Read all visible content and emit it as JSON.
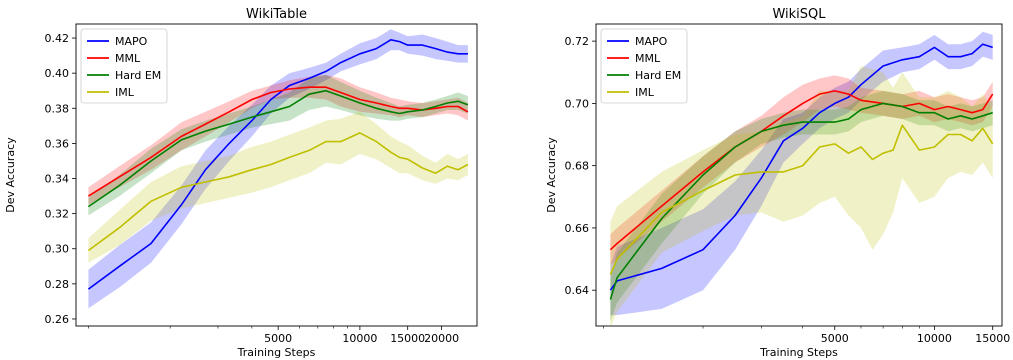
{
  "chart_data": [
    {
      "type": "line",
      "title": "WikiTable",
      "xlabel": "Training Steps",
      "ylabel": "Dev Accuracy",
      "xscale": "log",
      "xlim": [
        900,
        27000
      ],
      "ylim": [
        0.256,
        0.428
      ],
      "xticks": [
        5000,
        10000,
        15000,
        20000
      ],
      "xtick_labels": [
        "5000",
        "10000",
        "15000",
        "20000"
      ],
      "yticks": [
        0.26,
        0.28,
        0.3,
        0.32,
        0.34,
        0.36,
        0.38,
        0.4,
        0.42
      ],
      "ytick_labels": [
        "0.26",
        "0.28",
        "0.30",
        "0.32",
        "0.34",
        "0.36",
        "0.38",
        "0.40",
        "0.42"
      ],
      "grid": false,
      "legend_position": "upper left",
      "series": [
        {
          "name": "MAPO",
          "color": "#0000ff",
          "x": [
            1000,
            1300,
            1700,
            2200,
            2700,
            3300,
            4000,
            4700,
            5500,
            6500,
            7500,
            8500,
            10000,
            11500,
            13000,
            14000,
            15000,
            17000,
            19000,
            21000,
            23000,
            25000
          ],
          "y": [
            0.277,
            0.29,
            0.303,
            0.325,
            0.345,
            0.36,
            0.373,
            0.385,
            0.393,
            0.397,
            0.401,
            0.406,
            0.411,
            0.414,
            0.419,
            0.418,
            0.416,
            0.416,
            0.414,
            0.412,
            0.411,
            0.411
          ],
          "lower": [
            0.266,
            0.278,
            0.292,
            0.314,
            0.334,
            0.35,
            0.364,
            0.377,
            0.386,
            0.391,
            0.396,
            0.401,
            0.405,
            0.408,
            0.413,
            0.413,
            0.411,
            0.41,
            0.408,
            0.407,
            0.406,
            0.406
          ],
          "upper": [
            0.288,
            0.302,
            0.315,
            0.336,
            0.356,
            0.37,
            0.382,
            0.393,
            0.4,
            0.403,
            0.406,
            0.411,
            0.417,
            0.42,
            0.425,
            0.423,
            0.421,
            0.422,
            0.42,
            0.418,
            0.416,
            0.416
          ]
        },
        {
          "name": "MML",
          "color": "#ff0000",
          "x": [
            1000,
            1300,
            1700,
            2200,
            2700,
            3300,
            4000,
            4700,
            5500,
            6500,
            7500,
            8500,
            10000,
            11500,
            13000,
            14000,
            15000,
            17000,
            19000,
            21000,
            23000,
            25000
          ],
          "y": [
            0.33,
            0.341,
            0.352,
            0.364,
            0.371,
            0.378,
            0.385,
            0.389,
            0.391,
            0.392,
            0.392,
            0.389,
            0.385,
            0.383,
            0.381,
            0.38,
            0.38,
            0.379,
            0.38,
            0.381,
            0.381,
            0.378
          ],
          "lower": [
            0.325,
            0.335,
            0.345,
            0.356,
            0.364,
            0.372,
            0.38,
            0.385,
            0.386,
            0.386,
            0.385,
            0.381,
            0.378,
            0.377,
            0.376,
            0.375,
            0.376,
            0.375,
            0.376,
            0.377,
            0.376,
            0.373
          ],
          "upper": [
            0.335,
            0.347,
            0.359,
            0.372,
            0.378,
            0.384,
            0.39,
            0.393,
            0.396,
            0.398,
            0.399,
            0.397,
            0.392,
            0.389,
            0.386,
            0.385,
            0.384,
            0.383,
            0.384,
            0.385,
            0.386,
            0.383
          ]
        },
        {
          "name": "Hard EM",
          "color": "#008000",
          "x": [
            1000,
            1300,
            1700,
            2200,
            2700,
            3300,
            4000,
            4700,
            5500,
            6500,
            7500,
            8500,
            10000,
            11500,
            13000,
            14000,
            15000,
            17000,
            19000,
            21000,
            23000,
            25000
          ],
          "y": [
            0.324,
            0.336,
            0.35,
            0.362,
            0.367,
            0.371,
            0.375,
            0.378,
            0.381,
            0.388,
            0.39,
            0.387,
            0.383,
            0.38,
            0.378,
            0.377,
            0.378,
            0.379,
            0.381,
            0.383,
            0.384,
            0.382
          ],
          "lower": [
            0.319,
            0.33,
            0.343,
            0.356,
            0.361,
            0.365,
            0.369,
            0.371,
            0.373,
            0.379,
            0.381,
            0.379,
            0.376,
            0.374,
            0.373,
            0.373,
            0.374,
            0.375,
            0.377,
            0.379,
            0.379,
            0.377
          ],
          "upper": [
            0.329,
            0.342,
            0.357,
            0.368,
            0.373,
            0.377,
            0.381,
            0.385,
            0.389,
            0.397,
            0.399,
            0.395,
            0.39,
            0.386,
            0.383,
            0.381,
            0.382,
            0.383,
            0.385,
            0.387,
            0.389,
            0.387
          ]
        },
        {
          "name": "IML",
          "color": "#bfbf00",
          "x": [
            1000,
            1300,
            1700,
            2200,
            2700,
            3300,
            4000,
            4700,
            5500,
            6500,
            7500,
            8500,
            10000,
            11500,
            13000,
            14000,
            15000,
            17000,
            19000,
            21000,
            23000,
            25000
          ],
          "y": [
            0.299,
            0.312,
            0.327,
            0.335,
            0.338,
            0.341,
            0.345,
            0.348,
            0.352,
            0.356,
            0.361,
            0.361,
            0.366,
            0.361,
            0.355,
            0.352,
            0.351,
            0.346,
            0.343,
            0.347,
            0.345,
            0.348
          ],
          "lower": [
            0.292,
            0.302,
            0.316,
            0.323,
            0.326,
            0.329,
            0.332,
            0.335,
            0.339,
            0.343,
            0.349,
            0.348,
            0.354,
            0.351,
            0.346,
            0.343,
            0.343,
            0.339,
            0.337,
            0.34,
            0.339,
            0.342
          ],
          "upper": [
            0.306,
            0.322,
            0.338,
            0.347,
            0.35,
            0.353,
            0.358,
            0.361,
            0.365,
            0.369,
            0.373,
            0.374,
            0.378,
            0.371,
            0.364,
            0.361,
            0.359,
            0.353,
            0.349,
            0.354,
            0.351,
            0.354
          ]
        }
      ]
    },
    {
      "type": "line",
      "title": "WikiSQL",
      "xlabel": "Training Steps",
      "ylabel": "Dev Accuracy",
      "xscale": "log",
      "xlim": [
        950,
        16000
      ],
      "ylim": [
        0.6285,
        0.7255
      ],
      "xticks": [
        5000,
        10000,
        15000
      ],
      "xtick_labels": [
        "5000",
        "10000",
        "15000"
      ],
      "yticks": [
        0.64,
        0.66,
        0.68,
        0.7,
        0.72
      ],
      "ytick_labels": [
        "0.64",
        "0.66",
        "0.68",
        "0.70",
        "0.72"
      ],
      "grid": false,
      "legend_position": "upper left",
      "series": [
        {
          "name": "MAPO",
          "color": "#0000ff",
          "x": [
            1050,
            1100,
            1500,
            2000,
            2500,
            3000,
            3500,
            4000,
            4500,
            5000,
            5500,
            6000,
            7000,
            8000,
            9000,
            10000,
            11000,
            12000,
            13000,
            14000,
            15000
          ],
          "y": [
            0.64,
            0.643,
            0.647,
            0.653,
            0.664,
            0.676,
            0.688,
            0.692,
            0.697,
            0.7,
            0.702,
            0.706,
            0.712,
            0.714,
            0.715,
            0.718,
            0.715,
            0.715,
            0.716,
            0.719,
            0.718
          ],
          "lower": [
            0.632,
            0.632,
            0.634,
            0.64,
            0.653,
            0.667,
            0.681,
            0.687,
            0.692,
            0.695,
            0.697,
            0.701,
            0.707,
            0.71,
            0.711,
            0.714,
            0.711,
            0.711,
            0.712,
            0.715,
            0.714
          ],
          "upper": [
            0.648,
            0.654,
            0.66,
            0.666,
            0.675,
            0.685,
            0.695,
            0.697,
            0.702,
            0.705,
            0.707,
            0.711,
            0.717,
            0.718,
            0.719,
            0.722,
            0.719,
            0.719,
            0.72,
            0.723,
            0.722
          ]
        },
        {
          "name": "MML",
          "color": "#ff0000",
          "x": [
            1050,
            1100,
            1500,
            2000,
            2500,
            3000,
            3500,
            4000,
            4500,
            5000,
            5500,
            6000,
            7000,
            8000,
            9000,
            10000,
            11000,
            12000,
            13000,
            14000,
            15000
          ],
          "y": [
            0.653,
            0.655,
            0.667,
            0.678,
            0.686,
            0.691,
            0.696,
            0.7,
            0.703,
            0.704,
            0.703,
            0.701,
            0.7,
            0.699,
            0.7,
            0.698,
            0.699,
            0.698,
            0.697,
            0.698,
            0.703
          ],
          "lower": [
            0.648,
            0.65,
            0.662,
            0.673,
            0.681,
            0.686,
            0.69,
            0.694,
            0.698,
            0.699,
            0.698,
            0.697,
            0.696,
            0.695,
            0.696,
            0.694,
            0.695,
            0.694,
            0.693,
            0.694,
            0.699
          ],
          "upper": [
            0.658,
            0.66,
            0.672,
            0.683,
            0.691,
            0.696,
            0.702,
            0.706,
            0.708,
            0.709,
            0.708,
            0.705,
            0.704,
            0.703,
            0.704,
            0.702,
            0.703,
            0.702,
            0.701,
            0.702,
            0.707
          ]
        },
        {
          "name": "Hard EM",
          "color": "#008000",
          "x": [
            1050,
            1100,
            1500,
            2000,
            2500,
            3000,
            3500,
            4000,
            4500,
            5000,
            5500,
            6000,
            7000,
            8000,
            9000,
            10000,
            11000,
            12000,
            13000,
            14000,
            15000
          ],
          "y": [
            0.637,
            0.644,
            0.663,
            0.677,
            0.686,
            0.691,
            0.693,
            0.694,
            0.694,
            0.694,
            0.695,
            0.698,
            0.7,
            0.699,
            0.697,
            0.697,
            0.695,
            0.696,
            0.695,
            0.696,
            0.697
          ],
          "lower": [
            0.63,
            0.636,
            0.655,
            0.671,
            0.681,
            0.687,
            0.689,
            0.69,
            0.69,
            0.69,
            0.691,
            0.694,
            0.696,
            0.695,
            0.693,
            0.693,
            0.691,
            0.692,
            0.691,
            0.692,
            0.693
          ],
          "upper": [
            0.644,
            0.652,
            0.671,
            0.683,
            0.691,
            0.695,
            0.697,
            0.698,
            0.698,
            0.698,
            0.699,
            0.702,
            0.704,
            0.703,
            0.701,
            0.701,
            0.699,
            0.7,
            0.699,
            0.7,
            0.701
          ]
        },
        {
          "name": "IML",
          "color": "#bfbf00",
          "x": [
            1050,
            1100,
            1500,
            2000,
            2500,
            3000,
            3500,
            4000,
            4500,
            5000,
            5500,
            6000,
            6500,
            7000,
            7500,
            8000,
            9000,
            10000,
            11000,
            12000,
            13000,
            14000,
            15000
          ],
          "y": [
            0.645,
            0.65,
            0.665,
            0.672,
            0.677,
            0.678,
            0.678,
            0.68,
            0.686,
            0.687,
            0.684,
            0.686,
            0.682,
            0.684,
            0.685,
            0.693,
            0.685,
            0.686,
            0.69,
            0.69,
            0.688,
            0.692,
            0.687
          ],
          "lower": [
            0.628,
            0.633,
            0.652,
            0.659,
            0.664,
            0.665,
            0.662,
            0.664,
            0.668,
            0.67,
            0.664,
            0.66,
            0.653,
            0.658,
            0.665,
            0.676,
            0.668,
            0.67,
            0.676,
            0.678,
            0.677,
            0.681,
            0.676
          ],
          "upper": [
            0.662,
            0.667,
            0.678,
            0.685,
            0.69,
            0.691,
            0.694,
            0.696,
            0.704,
            0.704,
            0.704,
            0.712,
            0.711,
            0.71,
            0.705,
            0.71,
            0.702,
            0.702,
            0.704,
            0.702,
            0.699,
            0.703,
            0.698
          ]
        }
      ]
    }
  ]
}
